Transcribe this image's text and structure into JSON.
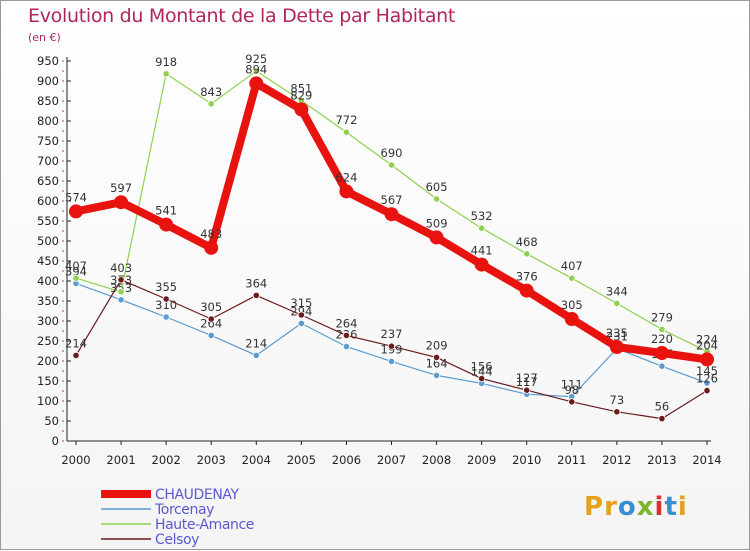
{
  "title": "Evolution du Montant de la Dette par Habitant",
  "subtitle": "(en €)",
  "logo": {
    "letters": [
      "P",
      "r",
      "o",
      "x",
      "i",
      "t",
      "i"
    ],
    "colors": [
      "#e6a11c",
      "#e6a11c",
      "#3a8fcf",
      "#7ab829",
      "#d9332b",
      "#3a8fcf",
      "#e6a11c"
    ]
  },
  "chart_data": {
    "type": "line",
    "x": [
      "2000",
      "2001",
      "2002",
      "2003",
      "2004",
      "2005",
      "2006",
      "2007",
      "2008",
      "2009",
      "2010",
      "2011",
      "2012",
      "2013",
      "2014"
    ],
    "ylim": [
      0,
      950
    ],
    "yticks": [
      0,
      50,
      100,
      150,
      200,
      250,
      300,
      350,
      400,
      450,
      500,
      550,
      600,
      650,
      700,
      750,
      800,
      850,
      900,
      950
    ],
    "grid": false,
    "legend_position": "bottom-left",
    "series": [
      {
        "name": "Torcenay",
        "color": "#5a9bd0",
        "values": [
          394,
          353,
          310,
          264,
          214,
          294,
          236,
          199,
          164,
          144,
          117,
          111,
          231,
          187,
          145
        ]
      },
      {
        "name": "Haute-Amance",
        "color": "#8fd14f",
        "values": [
          407,
          373,
          918,
          843,
          925,
          851,
          772,
          690,
          605,
          532,
          468,
          407,
          344,
          279,
          224
        ]
      },
      {
        "name": "Celsoy",
        "color": "#6b1a1a",
        "values": [
          214,
          403,
          355,
          305,
          364,
          315,
          264,
          237,
          209,
          156,
          127,
          98,
          73,
          56,
          126
        ]
      },
      {
        "name": "CHAUDENAY",
        "color": "#e8130f",
        "values": [
          574,
          597,
          541,
          483,
          894,
          829,
          624,
          567,
          509,
          441,
          376,
          305,
          235,
          220,
          204
        ]
      }
    ],
    "legend_order": [
      "CHAUDENAY",
      "Torcenay",
      "Haute-Amance",
      "Celsoy"
    ]
  }
}
